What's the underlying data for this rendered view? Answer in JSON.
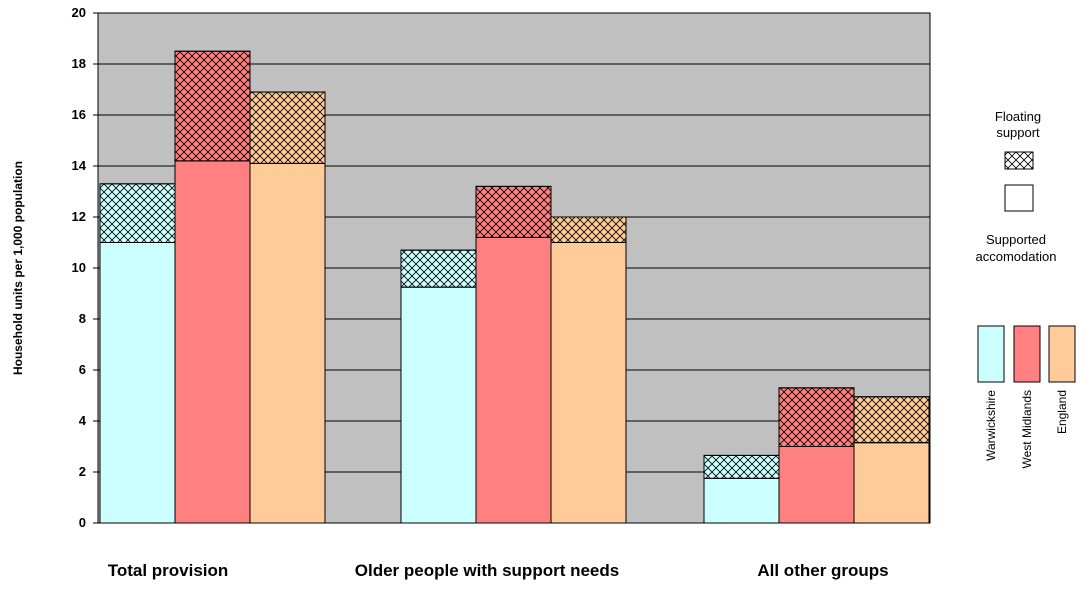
{
  "chart_data": {
    "type": "bar",
    "stacked": true,
    "title": "",
    "xlabel": "",
    "ylabel": "Household units per 1,000 population",
    "ylim": [
      0,
      20
    ],
    "yticks": [
      0,
      2,
      4,
      6,
      8,
      10,
      12,
      14,
      16,
      18,
      20
    ],
    "grid": true,
    "categories": [
      "Total provision",
      "Older people with support needs",
      "All other groups"
    ],
    "series": [
      {
        "name": "Warwickshire",
        "color": "#ccffff",
        "supported": [
          11.0,
          9.25,
          1.75
        ],
        "floating": [
          2.3,
          1.45,
          0.9
        ]
      },
      {
        "name": "West Midlands",
        "color": "#ff8080",
        "supported": [
          14.2,
          11.2,
          3.0
        ],
        "floating": [
          4.3,
          2.0,
          2.3
        ]
      },
      {
        "name": "England",
        "color": "#ffcc99",
        "supported": [
          14.1,
          11.0,
          3.15
        ],
        "floating": [
          2.8,
          1.0,
          1.8
        ]
      }
    ],
    "legend": {
      "position": "right",
      "floating_label": "Floating support",
      "supported_label": "Supported accomodation"
    }
  }
}
